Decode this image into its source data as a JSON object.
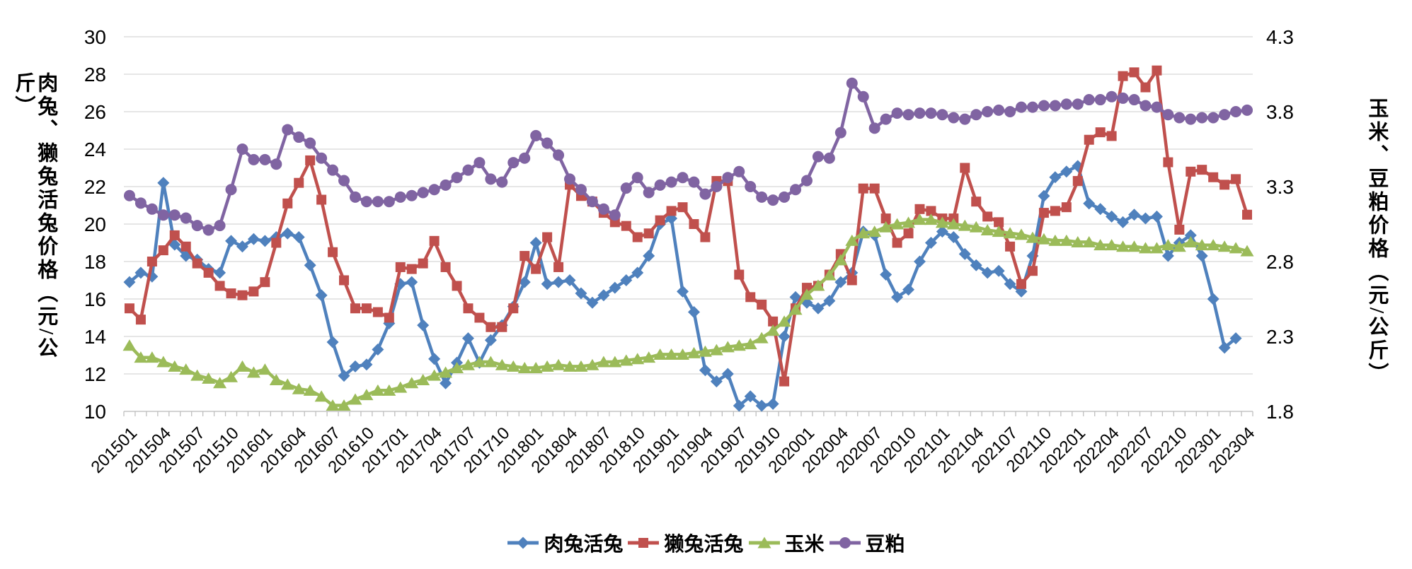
{
  "chart_data": {
    "type": "line",
    "title": "",
    "x_label_every": 3,
    "x": [
      "201501",
      "201502",
      "201503",
      "201504",
      "201505",
      "201506",
      "201507",
      "201508",
      "201509",
      "201510",
      "201511",
      "201512",
      "201601",
      "201602",
      "201603",
      "201604",
      "201605",
      "201606",
      "201607",
      "201608",
      "201609",
      "201610",
      "201611",
      "201612",
      "201701",
      "201702",
      "201703",
      "201704",
      "201705",
      "201706",
      "201707",
      "201708",
      "201709",
      "201710",
      "201711",
      "201712",
      "201801",
      "201802",
      "201803",
      "201804",
      "201805",
      "201806",
      "201807",
      "201808",
      "201809",
      "201810",
      "201811",
      "201812",
      "201901",
      "201902",
      "201903",
      "201904",
      "201905",
      "201906",
      "201907",
      "201908",
      "201909",
      "201910",
      "201911",
      "201912",
      "202001",
      "202002",
      "202003",
      "202004",
      "202005",
      "202006",
      "202007",
      "202008",
      "202009",
      "202010",
      "202011",
      "202012",
      "202101",
      "202102",
      "202103",
      "202104",
      "202105",
      "202106",
      "202107",
      "202108",
      "202109",
      "202110",
      "202111",
      "202112",
      "202201",
      "202202",
      "202203",
      "202204",
      "202205",
      "202206",
      "202207",
      "202208",
      "202209",
      "202210",
      "202211",
      "202212",
      "202301",
      "202302",
      "202303",
      "202304"
    ],
    "y_left": {
      "title": "肉兔、獭兔活兔价格（元/公斤）",
      "min": 10,
      "max": 30,
      "step": 2
    },
    "y_right": {
      "title": "玉米、豆粕价格（元/公斤）",
      "min": 1.8,
      "max": 4.3,
      "step": 0.5
    },
    "grid": "horizontal",
    "legend_position": "bottom",
    "series": [
      {
        "key": "meat-rabbit",
        "name": "肉兔活兔",
        "axis": "left",
        "marker": "diamond",
        "color": "#4F81BD",
        "values": [
          16.9,
          17.4,
          17.2,
          22.2,
          18.9,
          18.3,
          18.1,
          17.6,
          17.4,
          19.1,
          18.8,
          19.2,
          19.1,
          19.3,
          19.5,
          19.3,
          17.8,
          16.2,
          13.7,
          11.9,
          12.4,
          12.5,
          13.3,
          14.7,
          16.8,
          16.9,
          14.6,
          12.8,
          11.5,
          12.6,
          13.9,
          12.6,
          13.8,
          14.6,
          15.6,
          16.9,
          19.0,
          16.8,
          16.9,
          17.0,
          16.3,
          15.8,
          16.2,
          16.6,
          17.0,
          17.4,
          18.3,
          20.0,
          20.3,
          16.4,
          15.3,
          12.2,
          11.6,
          12.0,
          10.3,
          10.8,
          10.3,
          10.4,
          14.0,
          16.1,
          15.8,
          15.5,
          15.9,
          16.9,
          17.4,
          19.6,
          19.4,
          17.3,
          16.1,
          16.5,
          18.0,
          19.0,
          19.6,
          19.3,
          18.4,
          17.8,
          17.4,
          17.5,
          16.8,
          16.4,
          18.3,
          21.5,
          22.5,
          22.8,
          23.1,
          21.1,
          20.8,
          20.4,
          20.1,
          20.5,
          20.3,
          20.4,
          18.3,
          19.0,
          19.4,
          18.3,
          16.0,
          13.4,
          13.9,
          null
        ]
      },
      {
        "key": "rex-rabbit",
        "name": "獭兔活兔",
        "axis": "left",
        "marker": "square",
        "color": "#C0504D",
        "values": [
          15.5,
          14.9,
          18.0,
          18.6,
          19.4,
          18.8,
          17.9,
          17.4,
          16.7,
          16.3,
          16.2,
          16.4,
          16.9,
          19.0,
          21.1,
          22.2,
          23.4,
          21.3,
          18.5,
          17.0,
          15.5,
          15.5,
          15.3,
          15.0,
          17.7,
          17.6,
          17.9,
          19.1,
          17.7,
          16.7,
          15.5,
          15.0,
          14.5,
          14.5,
          15.5,
          18.3,
          17.6,
          19.3,
          17.7,
          22.1,
          21.5,
          21.2,
          20.6,
          20.1,
          19.9,
          19.3,
          19.5,
          20.2,
          20.7,
          20.9,
          20.0,
          19.3,
          22.3,
          22.3,
          17.3,
          16.1,
          15.7,
          14.8,
          11.6,
          15.5,
          16.6,
          16.7,
          17.3,
          18.4,
          17.0,
          21.9,
          21.9,
          20.3,
          19.0,
          19.5,
          20.8,
          20.7,
          20.3,
          20.3,
          23.0,
          21.2,
          20.4,
          20.1,
          18.8,
          16.8,
          17.5,
          20.6,
          20.7,
          20.9,
          22.3,
          24.5,
          24.9,
          24.7,
          27.9,
          28.1,
          27.3,
          28.2,
          23.3,
          19.7,
          22.8,
          22.9,
          22.5,
          22.1,
          22.4,
          20.5
        ]
      },
      {
        "key": "corn",
        "name": "玉米",
        "axis": "right",
        "marker": "triangle",
        "color": "#9BBB59",
        "values": [
          2.24,
          2.16,
          2.16,
          2.13,
          2.1,
          2.08,
          2.04,
          2.02,
          1.99,
          2.03,
          2.1,
          2.06,
          2.08,
          2.01,
          1.98,
          1.95,
          1.94,
          1.9,
          1.84,
          1.84,
          1.88,
          1.91,
          1.94,
          1.94,
          1.96,
          1.99,
          2.01,
          2.04,
          2.06,
          2.09,
          2.11,
          2.13,
          2.13,
          2.11,
          2.1,
          2.09,
          2.09,
          2.1,
          2.11,
          2.1,
          2.1,
          2.11,
          2.13,
          2.13,
          2.14,
          2.15,
          2.16,
          2.18,
          2.18,
          2.18,
          2.19,
          2.2,
          2.21,
          2.23,
          2.24,
          2.25,
          2.29,
          2.34,
          2.4,
          2.48,
          2.58,
          2.64,
          2.71,
          2.81,
          2.94,
          2.99,
          3.0,
          3.03,
          3.05,
          3.06,
          3.08,
          3.08,
          3.06,
          3.05,
          3.04,
          3.03,
          3.01,
          3.0,
          2.99,
          2.98,
          2.96,
          2.95,
          2.94,
          2.94,
          2.93,
          2.93,
          2.91,
          2.91,
          2.9,
          2.9,
          2.89,
          2.89,
          2.91,
          2.9,
          2.93,
          2.91,
          2.91,
          2.9,
          2.89,
          2.87
        ]
      },
      {
        "key": "soybean-meal",
        "name": "豆粕",
        "axis": "right",
        "marker": "circle",
        "color": "#8064A2",
        "values": [
          3.24,
          3.19,
          3.15,
          3.11,
          3.11,
          3.09,
          3.04,
          3.01,
          3.04,
          3.28,
          3.55,
          3.48,
          3.48,
          3.45,
          3.68,
          3.63,
          3.59,
          3.49,
          3.41,
          3.34,
          3.23,
          3.2,
          3.2,
          3.2,
          3.23,
          3.24,
          3.26,
          3.28,
          3.31,
          3.36,
          3.41,
          3.46,
          3.35,
          3.33,
          3.46,
          3.49,
          3.64,
          3.59,
          3.51,
          3.35,
          3.28,
          3.2,
          3.15,
          3.11,
          3.29,
          3.36,
          3.26,
          3.31,
          3.33,
          3.36,
          3.33,
          3.25,
          3.3,
          3.36,
          3.4,
          3.3,
          3.23,
          3.21,
          3.23,
          3.28,
          3.34,
          3.5,
          3.49,
          3.66,
          3.99,
          3.9,
          3.69,
          3.75,
          3.79,
          3.78,
          3.79,
          3.79,
          3.78,
          3.76,
          3.75,
          3.78,
          3.8,
          3.81,
          3.8,
          3.83,
          3.83,
          3.84,
          3.84,
          3.85,
          3.85,
          3.88,
          3.88,
          3.9,
          3.89,
          3.88,
          3.84,
          3.83,
          3.78,
          3.76,
          3.75,
          3.76,
          3.76,
          3.78,
          3.8,
          3.81
        ]
      }
    ],
    "colors": {
      "gridline": "#D6D6D6",
      "axis_line": "#BFBFBF",
      "text": "#000000"
    }
  }
}
